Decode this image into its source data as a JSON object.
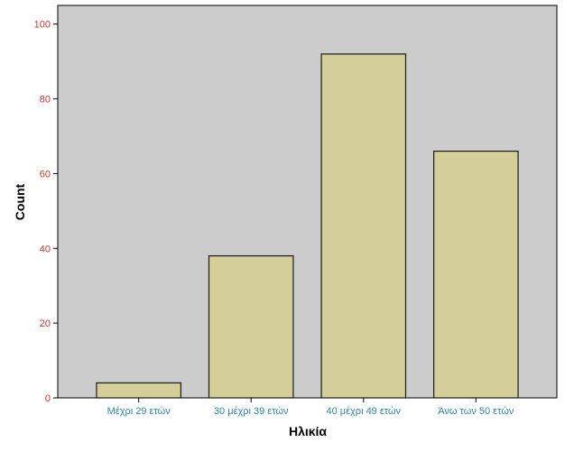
{
  "chart_data": {
    "type": "bar",
    "title": "",
    "xlabel": "Ηλικία",
    "ylabel": "Count",
    "categories": [
      "Μέχρι 29 ετών",
      "30 μέχρι 39 ετών",
      "40 μέχρι 49 ετών",
      "Άνω των 50 ετών"
    ],
    "values": [
      4,
      38,
      92,
      66
    ],
    "ylim": [
      0,
      105
    ],
    "yticks": [
      "0",
      "20",
      "40",
      "60",
      "80",
      "100"
    ],
    "grid": false,
    "legend": "none",
    "colors": {
      "plot_background": "#cccccc",
      "bar_fill": "#d4cf98",
      "bar_stroke": "#1a1a1a",
      "y_tick_label": "#c0392b",
      "x_tick_label": "#2e86a6"
    }
  }
}
